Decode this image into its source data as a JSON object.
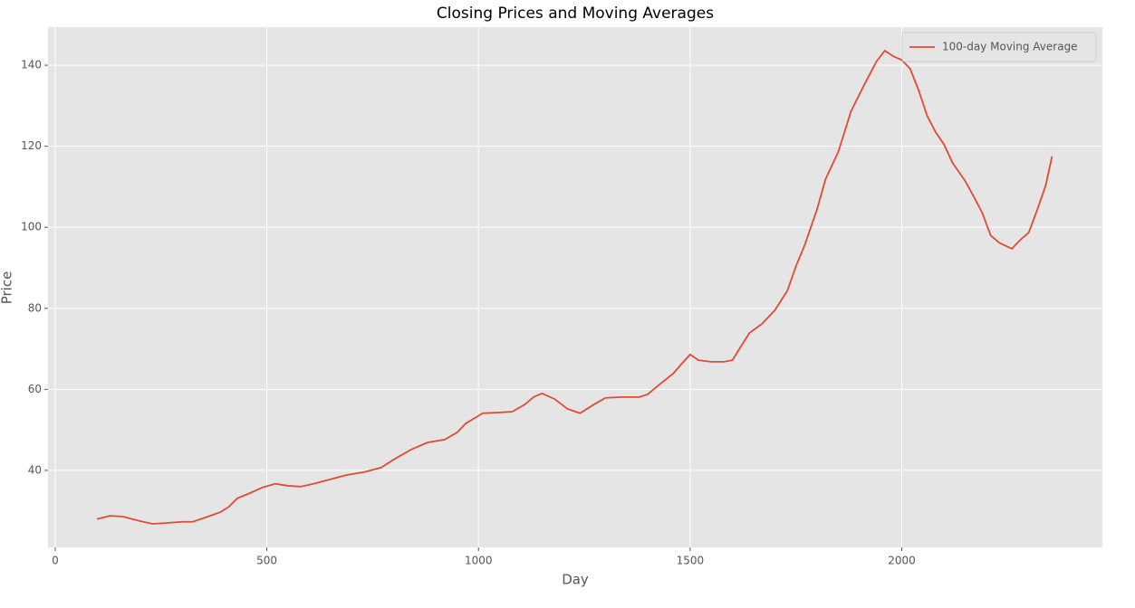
{
  "chart_data": {
    "type": "line",
    "title": "Closing Prices and Moving Averages",
    "x_label": "Day",
    "y_label": "Price",
    "x": [
      99,
      130,
      160,
      200,
      230,
      260,
      300,
      325,
      350,
      390,
      410,
      430,
      460,
      490,
      520,
      550,
      580,
      610,
      650,
      690,
      730,
      770,
      800,
      840,
      880,
      920,
      950,
      970,
      1010,
      1050,
      1080,
      1110,
      1130,
      1150,
      1180,
      1210,
      1240,
      1270,
      1300,
      1340,
      1380,
      1400,
      1430,
      1460,
      1480,
      1500,
      1520,
      1550,
      1580,
      1600,
      1620,
      1640,
      1670,
      1700,
      1730,
      1750,
      1770,
      1800,
      1820,
      1850,
      1880,
      1910,
      1940,
      1960,
      1980,
      2000,
      2020,
      2040,
      2060,
      2080,
      2100,
      2120,
      2150,
      2170,
      2190,
      2210,
      2230,
      2260,
      2280,
      2300,
      2320,
      2340,
      2355
    ],
    "series": [
      {
        "name": "100-day Moving Average",
        "color": "#e24a33",
        "values": [
          28.0,
          28.8,
          28.6,
          27.5,
          26.8,
          27.0,
          27.3,
          27.3,
          28.2,
          29.7,
          31.0,
          33.1,
          34.4,
          35.8,
          36.7,
          36.2,
          36.0,
          36.7,
          37.8,
          38.9,
          39.6,
          40.7,
          42.7,
          45.1,
          46.9,
          47.6,
          49.4,
          51.6,
          54.1,
          54.3,
          54.5,
          56.3,
          58.1,
          59.0,
          57.6,
          55.2,
          54.1,
          56.1,
          57.9,
          58.1,
          58.1,
          58.8,
          61.4,
          63.9,
          66.3,
          68.6,
          67.2,
          66.8,
          66.8,
          67.2,
          70.6,
          73.9,
          76.2,
          79.5,
          84.4,
          90.4,
          95.4,
          104.5,
          111.9,
          118.6,
          128.6,
          134.9,
          140.9,
          143.6,
          142.2,
          141.3,
          139.1,
          133.8,
          127.5,
          123.5,
          120.4,
          115.9,
          111.4,
          107.6,
          103.6,
          98.0,
          96.2,
          94.7,
          96.9,
          98.7,
          104.3,
          110.3,
          117.5
        ]
      }
    ],
    "xlim": [
      -17,
      2474
    ],
    "ylim": [
      21.0,
      149.4
    ],
    "xticks": [
      0,
      500,
      1000,
      1500,
      2000
    ],
    "yticks": [
      40,
      60,
      80,
      100,
      120,
      140
    ],
    "grid": true,
    "legend": "upper right"
  }
}
